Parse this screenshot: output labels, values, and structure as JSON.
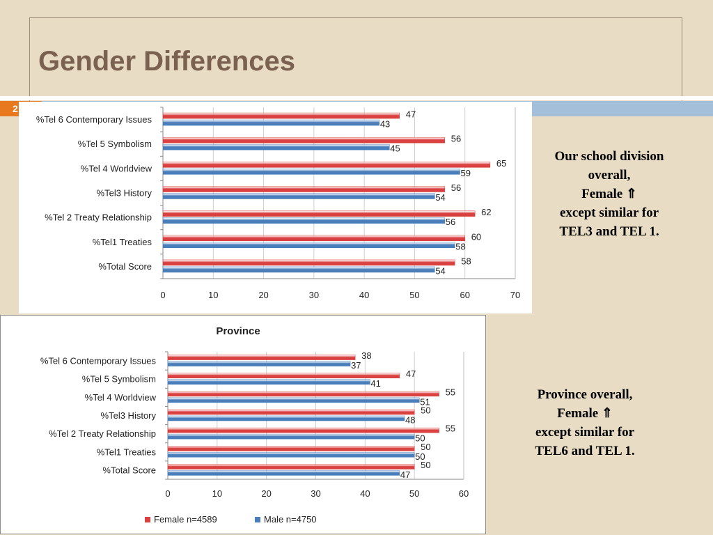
{
  "slide": {
    "title": "Gender Differences",
    "number": "2"
  },
  "notes": {
    "school": [
      "Our school division",
      "overall,",
      "Female ⇑",
      "except  similar for",
      "TEL3 and TEL 1."
    ],
    "province": [
      "Province overall,",
      "Female ⇑",
      "except  similar for",
      "TEL6 and TEL 1."
    ]
  },
  "colors": {
    "female": "#d9403f",
    "male": "#4a7ebb",
    "background": "#e8dcc4",
    "title": "#7a6150",
    "accent_orange": "#e8791e",
    "accent_blue": "#a3bfd9"
  },
  "chart_data": [
    {
      "type": "bar",
      "orientation": "horizontal",
      "title": "",
      "categories": [
        "%Tel 6 Contemporary Issues",
        "%Tel 5 Symbolism",
        "%Tel 4 Worldview",
        "%Tel3 History",
        "%Tel 2 Treaty Relationship",
        "%Tel1 Treaties",
        "%Total Score"
      ],
      "series": [
        {
          "values": [
            47,
            56,
            65,
            56,
            62,
            60,
            58
          ],
          "color": "#d9403f"
        },
        {
          "values": [
            43,
            45,
            59,
            54,
            56,
            58,
            54
          ],
          "color": "#4a7ebb"
        }
      ],
      "xlim": [
        0,
        70
      ],
      "xticks": [
        0,
        10,
        20,
        30,
        40,
        50,
        60,
        70
      ],
      "grid": true,
      "legend": "none"
    },
    {
      "type": "bar",
      "orientation": "horizontal",
      "title": "Province",
      "categories": [
        "%Tel 6 Contemporary Issues",
        "%Tel 5 Symbolism",
        "%Tel 4 Worldview",
        "%Tel3 History",
        "%Tel 2 Treaty Relationship",
        "%Tel1 Treaties",
        "%Total Score"
      ],
      "series": [
        {
          "name": "Female n=4589",
          "values": [
            38,
            47,
            55,
            50,
            55,
            50,
            50
          ],
          "color": "#d9403f"
        },
        {
          "name": "Male n=4750",
          "values": [
            37,
            41,
            51,
            48,
            50,
            50,
            47
          ],
          "color": "#4a7ebb"
        }
      ],
      "xlim": [
        0,
        60
      ],
      "xticks": [
        0,
        10,
        20,
        30,
        40,
        50,
        60
      ],
      "grid": true,
      "legend": "bottom"
    }
  ]
}
